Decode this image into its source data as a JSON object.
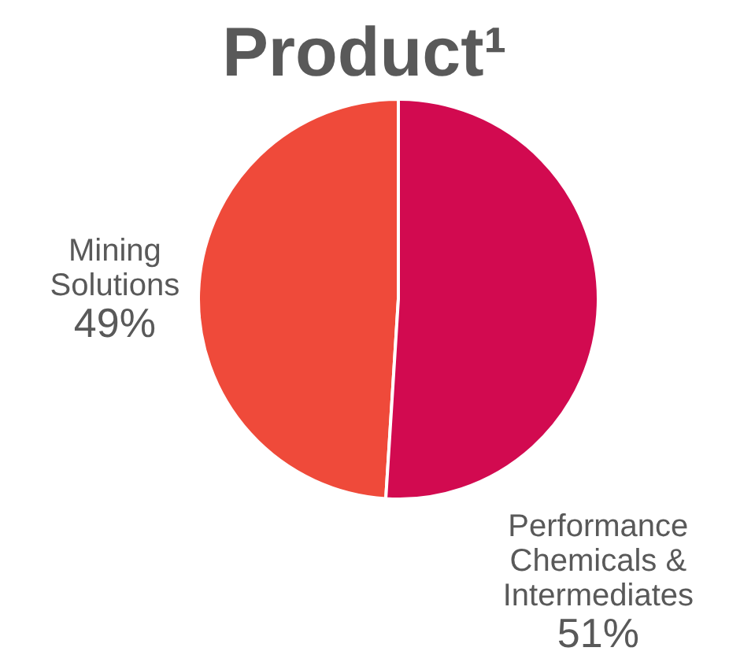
{
  "chart_data": {
    "type": "pie",
    "title": "Product¹",
    "categories": [
      "Mining Solutions",
      "Performance Chemicals & Intermediates"
    ],
    "values": [
      49,
      51
    ],
    "colors": [
      "#ef4a3a",
      "#d20a50"
    ],
    "value_labels": [
      "49%",
      "51%"
    ],
    "legend": false
  }
}
